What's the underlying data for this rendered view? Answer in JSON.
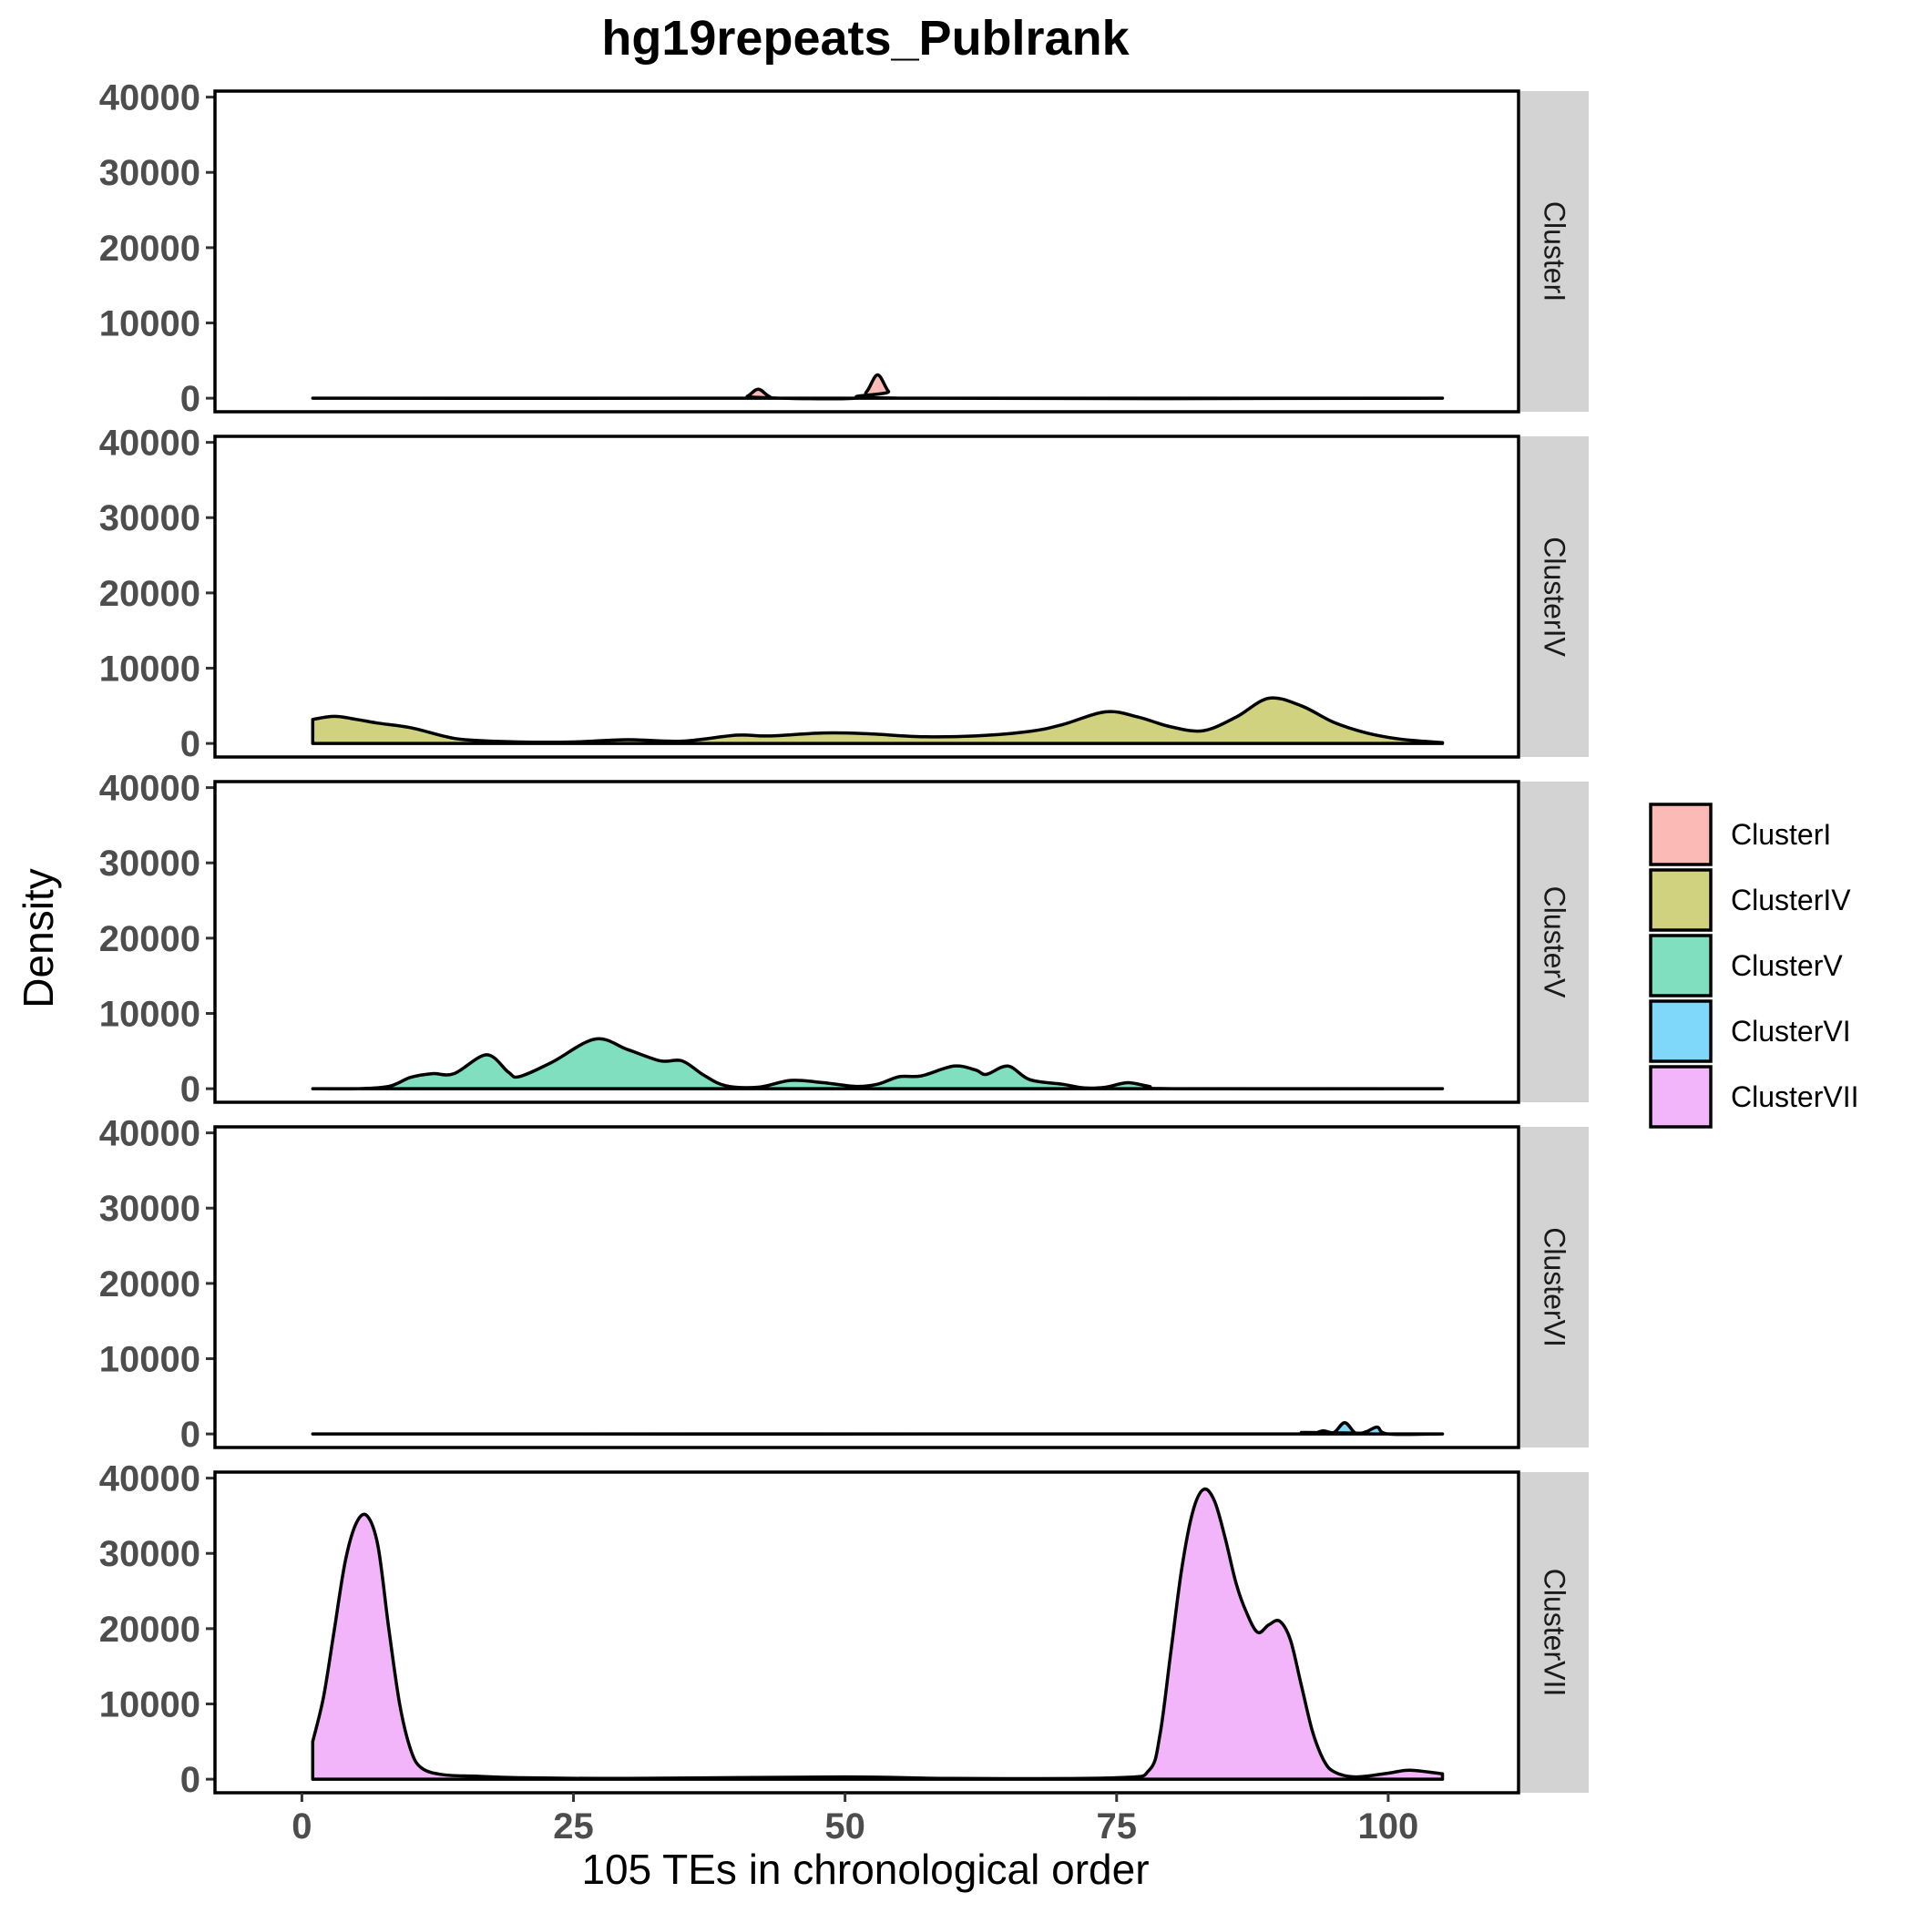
{
  "chart_data": {
    "type": "area",
    "title": "hg19repeats_Publrank",
    "xlabel": "105 TEs in chronological order",
    "ylabel": "Density",
    "xlim": [
      -8,
      112
    ],
    "ylim": [
      -1800,
      40800
    ],
    "x_ticks": [
      0,
      25,
      50,
      75,
      100
    ],
    "y_ticks": [
      0,
      10000,
      20000,
      30000,
      40000
    ],
    "facet_layout": "rows",
    "grid": false,
    "legend_position": "right",
    "series": [
      {
        "name": "ClusterI",
        "color": "#F8766D",
        "points": [
          [
            1,
            0
          ],
          [
            40,
            0
          ],
          [
            41,
            250
          ],
          [
            42,
            1200
          ],
          [
            43,
            250
          ],
          [
            44,
            0
          ],
          [
            51,
            0
          ],
          [
            52,
            900
          ],
          [
            53,
            3100
          ],
          [
            54,
            900
          ],
          [
            55,
            0
          ],
          [
            105,
            0
          ]
        ]
      },
      {
        "name": "ClusterIV",
        "color": "#A3A500",
        "points": [
          [
            1,
            3200
          ],
          [
            3,
            3600
          ],
          [
            5,
            3200
          ],
          [
            7,
            2700
          ],
          [
            10,
            2100
          ],
          [
            13,
            1000
          ],
          [
            15,
            500
          ],
          [
            20,
            200
          ],
          [
            25,
            200
          ],
          [
            30,
            500
          ],
          [
            35,
            300
          ],
          [
            40,
            1100
          ],
          [
            43,
            1000
          ],
          [
            48,
            1400
          ],
          [
            52,
            1300
          ],
          [
            57,
            900
          ],
          [
            62,
            1000
          ],
          [
            67,
            1600
          ],
          [
            70,
            2500
          ],
          [
            74,
            4200
          ],
          [
            77,
            3500
          ],
          [
            80,
            2200
          ],
          [
            83,
            1700
          ],
          [
            86,
            3500
          ],
          [
            89,
            6000
          ],
          [
            92,
            5000
          ],
          [
            95,
            2800
          ],
          [
            98,
            1400
          ],
          [
            101,
            600
          ],
          [
            105,
            100
          ]
        ]
      },
      {
        "name": "ClusterV",
        "color": "#00BF7D",
        "points": [
          [
            1,
            0
          ],
          [
            5,
            0
          ],
          [
            8,
            300
          ],
          [
            10,
            1500
          ],
          [
            12,
            2000
          ],
          [
            14,
            2000
          ],
          [
            17,
            4500
          ],
          [
            19,
            2200
          ],
          [
            20,
            1600
          ],
          [
            23,
            3500
          ],
          [
            27,
            6600
          ],
          [
            30,
            5200
          ],
          [
            33,
            3700
          ],
          [
            35,
            3700
          ],
          [
            37,
            1800
          ],
          [
            39,
            400
          ],
          [
            42,
            200
          ],
          [
            45,
            1100
          ],
          [
            48,
            800
          ],
          [
            51,
            300
          ],
          [
            53,
            600
          ],
          [
            55,
            1600
          ],
          [
            57,
            1700
          ],
          [
            60,
            3000
          ],
          [
            62,
            2500
          ],
          [
            63,
            1900
          ],
          [
            65,
            3000
          ],
          [
            67,
            1200
          ],
          [
            70,
            600
          ],
          [
            72,
            100
          ],
          [
            74,
            200
          ],
          [
            76,
            800
          ],
          [
            78,
            300
          ],
          [
            80,
            0
          ],
          [
            105,
            0
          ]
        ]
      },
      {
        "name": "ClusterVI",
        "color": "#00B0F6",
        "points": [
          [
            1,
            0
          ],
          [
            91,
            0
          ],
          [
            92,
            200
          ],
          [
            93,
            0
          ],
          [
            94,
            400
          ],
          [
            95,
            200
          ],
          [
            96,
            1500
          ],
          [
            97,
            100
          ],
          [
            98,
            300
          ],
          [
            99,
            900
          ],
          [
            100,
            0
          ],
          [
            105,
            0
          ]
        ]
      },
      {
        "name": "ClusterVII",
        "color": "#E76BF3",
        "points": [
          [
            1,
            5000
          ],
          [
            2,
            11000
          ],
          [
            3,
            20000
          ],
          [
            4,
            29000
          ],
          [
            5,
            34000
          ],
          [
            6,
            35000
          ],
          [
            7,
            31000
          ],
          [
            8,
            20000
          ],
          [
            9,
            10000
          ],
          [
            10,
            4000
          ],
          [
            11,
            1500
          ],
          [
            13,
            600
          ],
          [
            16,
            400
          ],
          [
            20,
            200
          ],
          [
            30,
            100
          ],
          [
            50,
            300
          ],
          [
            60,
            100
          ],
          [
            75,
            200
          ],
          [
            78,
            1200
          ],
          [
            79,
            6000
          ],
          [
            80,
            17000
          ],
          [
            81,
            28000
          ],
          [
            82,
            35500
          ],
          [
            83,
            38500
          ],
          [
            84,
            37000
          ],
          [
            85,
            32000
          ],
          [
            86,
            26000
          ],
          [
            87,
            22000
          ],
          [
            88,
            19500
          ],
          [
            89,
            20500
          ],
          [
            90,
            21000
          ],
          [
            91,
            18500
          ],
          [
            92,
            12500
          ],
          [
            93,
            6500
          ],
          [
            94,
            2700
          ],
          [
            95,
            1000
          ],
          [
            97,
            300
          ],
          [
            100,
            800
          ],
          [
            102,
            1200
          ],
          [
            105,
            700
          ]
        ]
      }
    ]
  }
}
